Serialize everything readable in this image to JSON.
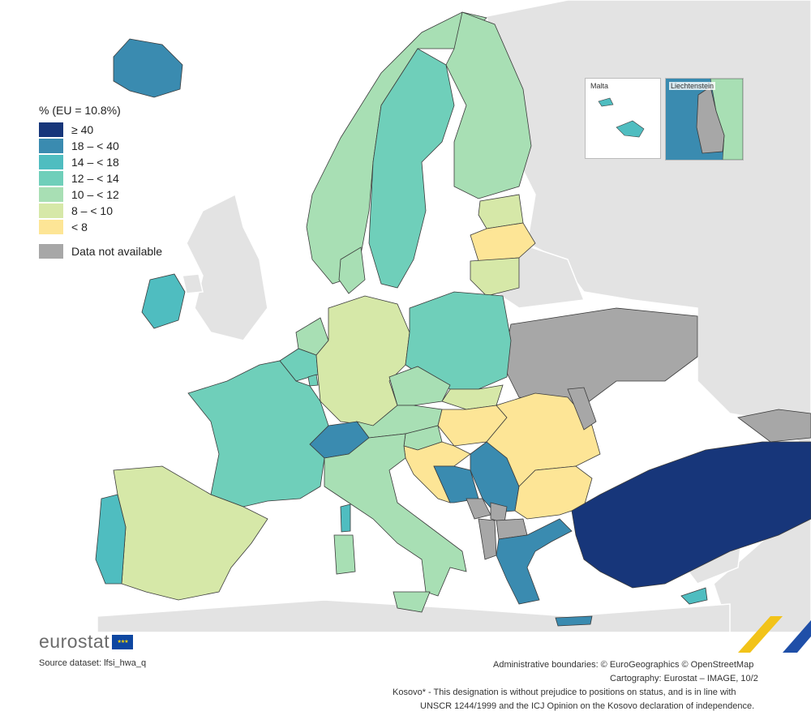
{
  "legend": {
    "title": "% (EU = 10.8%)",
    "items": [
      {
        "label": "≥ 40",
        "color": "#17367a"
      },
      {
        "label": "18 – < 40",
        "color": "#3a8bb0"
      },
      {
        "label": "14 – < 18",
        "color": "#4fbdc0"
      },
      {
        "label": "12 – < 14",
        "color": "#6fcfba"
      },
      {
        "label": "10 – < 12",
        "color": "#a8dfb4"
      },
      {
        "label": "8 – < 10",
        "color": "#d6e8a8"
      },
      {
        "label": "< 8",
        "color": "#fde596"
      }
    ],
    "not_available": {
      "label": "Data not available",
      "color": "#a7a7a7"
    }
  },
  "background_colors": {
    "sea": "#ffffff",
    "non_covered_land": "#e3e3e3",
    "border": "#3b3b3b"
  },
  "insets": {
    "malta": {
      "label": "Malta",
      "class_color": "#4fbdc0"
    },
    "liechtenstein": {
      "label": "Liechtenstein",
      "class_color": "#a7a7a7"
    }
  },
  "branding": {
    "name": "eurostat",
    "flag_icon": "eu-flag-icon"
  },
  "source": "Source dataset: lfsi_hwa_q",
  "credits": [
    "Administrative boundaries: © EuroGeographics © OpenStreetMap",
    "Cartography: Eurostat – IMAGE, 10/2",
    "Kosovo* - This designation is without prejudice to positions on status, and is in line with",
    "UNSCR 1244/1999 and the ICJ Opinion on the Kosovo declaration of independence."
  ]
}
